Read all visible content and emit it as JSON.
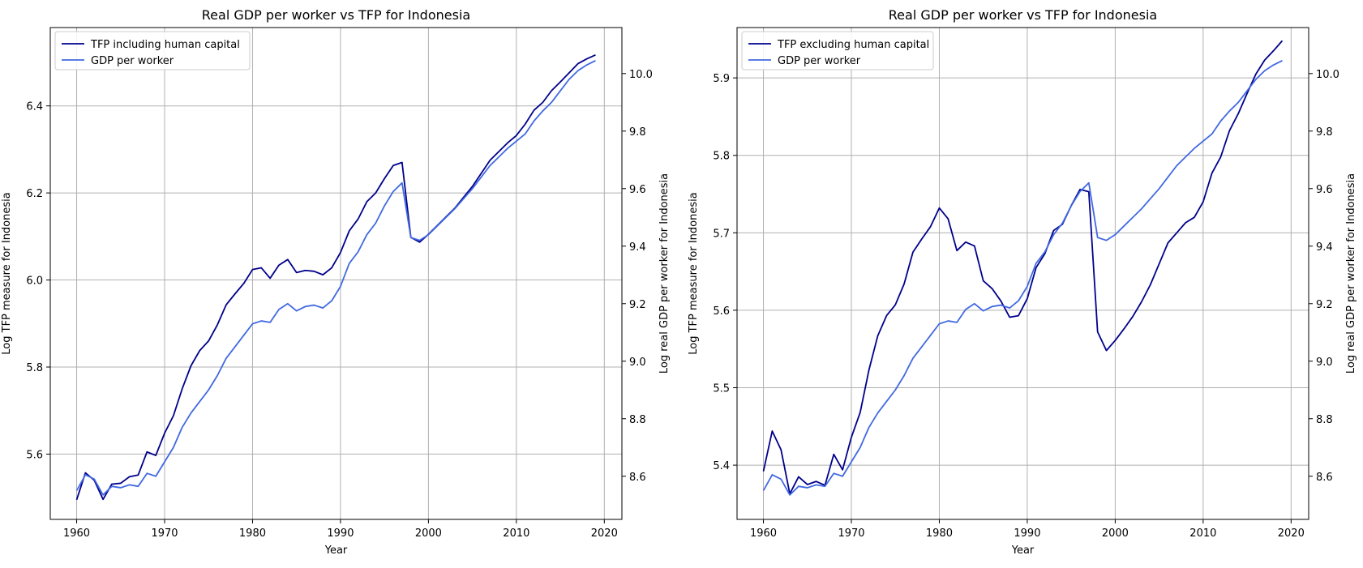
{
  "colors": {
    "tfp": "#00008b",
    "gdp": "#4169e1",
    "grid": "#b0b0b0"
  },
  "chart_data": [
    {
      "type": "line",
      "title": "Real GDP per worker vs TFP for Indonesia",
      "xlabel": "Year",
      "ylabel": "Log TFP measure for Indonesia",
      "ylabel_right": "Log real GDP per worker for Indonesia",
      "xlim": [
        1957,
        2022
      ],
      "ylim": [
        5.45,
        6.58
      ],
      "ylim_right": [
        8.45,
        10.16
      ],
      "xticks": [
        1960,
        1970,
        1980,
        1990,
        2000,
        2010,
        2020
      ],
      "yticks": [
        5.6,
        5.8,
        6.0,
        6.2,
        6.4
      ],
      "yticks_right": [
        8.6,
        8.8,
        9.0,
        9.2,
        9.4,
        9.6,
        9.8,
        10.0
      ],
      "grid": true,
      "legend": "top-left",
      "x": [
        1960,
        1961,
        1962,
        1963,
        1964,
        1965,
        1966,
        1967,
        1968,
        1969,
        1970,
        1971,
        1972,
        1973,
        1974,
        1975,
        1976,
        1977,
        1978,
        1979,
        1980,
        1981,
        1982,
        1983,
        1984,
        1985,
        1986,
        1987,
        1988,
        1989,
        1990,
        1991,
        1992,
        1993,
        1994,
        1995,
        1996,
        1997,
        1998,
        1999,
        2000,
        2001,
        2002,
        2003,
        2004,
        2005,
        2006,
        2007,
        2008,
        2009,
        2010,
        2011,
        2012,
        2013,
        2014,
        2015,
        2016,
        2017,
        2018,
        2019
      ],
      "series": [
        {
          "name": "TFP including human capital",
          "axis": "left",
          "values": [
            5.495,
            5.557,
            5.54,
            5.496,
            5.531,
            5.533,
            5.548,
            5.552,
            5.605,
            5.597,
            5.648,
            5.688,
            5.75,
            5.803,
            5.838,
            5.86,
            5.897,
            5.943,
            5.968,
            5.992,
            6.024,
            6.028,
            6.004,
            6.034,
            6.047,
            6.017,
            6.022,
            6.02,
            6.012,
            6.028,
            6.063,
            6.113,
            6.14,
            6.18,
            6.2,
            6.233,
            6.263,
            6.27,
            6.098,
            6.087,
            6.105,
            6.125,
            6.145,
            6.165,
            6.19,
            6.215,
            6.245,
            6.275,
            6.295,
            6.315,
            6.332,
            6.358,
            6.39,
            6.408,
            6.435,
            6.455,
            6.476,
            6.497,
            6.508,
            6.517
          ]
        },
        {
          "name": "GDP per worker",
          "axis": "right",
          "values": [
            8.55,
            8.605,
            8.59,
            8.535,
            8.565,
            8.56,
            8.57,
            8.565,
            8.61,
            8.6,
            8.65,
            8.7,
            8.77,
            8.82,
            8.86,
            8.9,
            8.95,
            9.01,
            9.05,
            9.09,
            9.13,
            9.14,
            9.135,
            9.18,
            9.2,
            9.175,
            9.19,
            9.195,
            9.185,
            9.21,
            9.26,
            9.34,
            9.38,
            9.44,
            9.48,
            9.54,
            9.59,
            9.62,
            9.43,
            9.42,
            9.44,
            9.47,
            9.5,
            9.53,
            9.565,
            9.6,
            9.64,
            9.68,
            9.71,
            9.74,
            9.765,
            9.79,
            9.835,
            9.87,
            9.9,
            9.94,
            9.98,
            10.01,
            10.03,
            10.045
          ]
        }
      ]
    },
    {
      "type": "line",
      "title": "Real GDP per worker vs TFP for Indonesia",
      "xlabel": "Year",
      "ylabel": "Log TFP measure for Indonesia",
      "ylabel_right": "Log real GDP per worker for Indonesia",
      "xlim": [
        1957,
        2022
      ],
      "ylim": [
        5.33,
        5.965
      ],
      "ylim_right": [
        8.45,
        10.16
      ],
      "xticks": [
        1960,
        1970,
        1980,
        1990,
        2000,
        2010,
        2020
      ],
      "yticks": [
        5.4,
        5.5,
        5.6,
        5.7,
        5.8,
        5.9
      ],
      "yticks_right": [
        8.6,
        8.8,
        9.0,
        9.2,
        9.4,
        9.6,
        9.8,
        10.0
      ],
      "grid": true,
      "legend": "top-left",
      "x": [
        1960,
        1961,
        1962,
        1963,
        1964,
        1965,
        1966,
        1967,
        1968,
        1969,
        1970,
        1971,
        1972,
        1973,
        1974,
        1975,
        1976,
        1977,
        1978,
        1979,
        1980,
        1981,
        1982,
        1983,
        1984,
        1985,
        1986,
        1987,
        1988,
        1989,
        1990,
        1991,
        1992,
        1993,
        1994,
        1995,
        1996,
        1997,
        1998,
        1999,
        2000,
        2001,
        2002,
        2003,
        2004,
        2005,
        2006,
        2007,
        2008,
        2009,
        2010,
        2011,
        2012,
        2013,
        2014,
        2015,
        2016,
        2017,
        2018,
        2019
      ],
      "series": [
        {
          "name": "TFP excluding human capital",
          "axis": "left",
          "values": [
            5.392,
            5.444,
            5.42,
            5.363,
            5.385,
            5.375,
            5.379,
            5.374,
            5.414,
            5.394,
            5.436,
            5.468,
            5.523,
            5.567,
            5.593,
            5.607,
            5.634,
            5.675,
            5.692,
            5.708,
            5.732,
            5.718,
            5.677,
            5.688,
            5.683,
            5.638,
            5.628,
            5.612,
            5.591,
            5.593,
            5.615,
            5.655,
            5.673,
            5.703,
            5.711,
            5.735,
            5.756,
            5.753,
            5.572,
            5.548,
            5.561,
            5.576,
            5.592,
            5.611,
            5.633,
            5.66,
            5.687,
            5.7,
            5.713,
            5.72,
            5.74,
            5.777,
            5.798,
            5.832,
            5.854,
            5.88,
            5.905,
            5.923,
            5.935,
            5.948
          ]
        },
        {
          "name": "GDP per worker",
          "axis": "right",
          "values": [
            8.55,
            8.605,
            8.59,
            8.535,
            8.565,
            8.56,
            8.57,
            8.565,
            8.61,
            8.6,
            8.65,
            8.7,
            8.77,
            8.82,
            8.86,
            8.9,
            8.95,
            9.01,
            9.05,
            9.09,
            9.13,
            9.14,
            9.135,
            9.18,
            9.2,
            9.175,
            9.19,
            9.195,
            9.185,
            9.21,
            9.26,
            9.34,
            9.38,
            9.44,
            9.48,
            9.54,
            9.59,
            9.62,
            9.43,
            9.42,
            9.44,
            9.47,
            9.5,
            9.53,
            9.565,
            9.6,
            9.64,
            9.68,
            9.71,
            9.74,
            9.765,
            9.79,
            9.835,
            9.87,
            9.9,
            9.94,
            9.98,
            10.01,
            10.03,
            10.045
          ]
        }
      ]
    }
  ]
}
